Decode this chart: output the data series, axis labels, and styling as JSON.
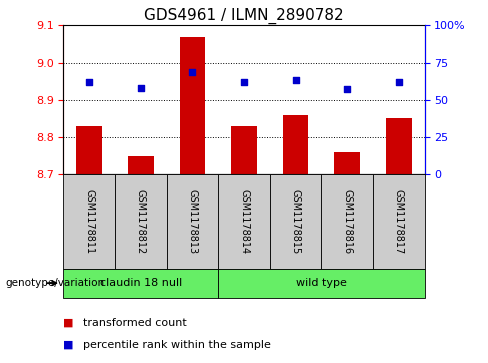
{
  "title": "GDS4961 / ILMN_2890782",
  "samples": [
    "GSM1178811",
    "GSM1178812",
    "GSM1178813",
    "GSM1178814",
    "GSM1178815",
    "GSM1178816",
    "GSM1178817"
  ],
  "transformed_count": [
    8.83,
    8.75,
    9.07,
    8.83,
    8.86,
    8.76,
    8.85
  ],
  "percentile_rank": [
    62,
    58,
    69,
    62,
    63,
    57,
    62
  ],
  "bar_baseline": 8.7,
  "ylim_left": [
    8.7,
    9.1
  ],
  "ylim_right": [
    0,
    100
  ],
  "yticks_left": [
    8.7,
    8.8,
    8.9,
    9.0,
    9.1
  ],
  "yticks_right": [
    0,
    25,
    50,
    75,
    100
  ],
  "ytick_labels_right": [
    "0",
    "25",
    "50",
    "75",
    "100%"
  ],
  "bar_color": "#cc0000",
  "dot_color": "#0000cc",
  "group1_label": "claudin 18 null",
  "group2_label": "wild type",
  "group1_indices": [
    0,
    1,
    2
  ],
  "group2_indices": [
    3,
    4,
    5,
    6
  ],
  "group_bg_color": "#66ee66",
  "sample_bg_color": "#cccccc",
  "genotype_label": "genotype/variation",
  "legend_bar_label": "transformed count",
  "legend_dot_label": "percentile rank within the sample",
  "title_fontsize": 11,
  "tick_fontsize": 8,
  "sample_fontsize": 7,
  "group_fontsize": 8,
  "legend_fontsize": 8
}
